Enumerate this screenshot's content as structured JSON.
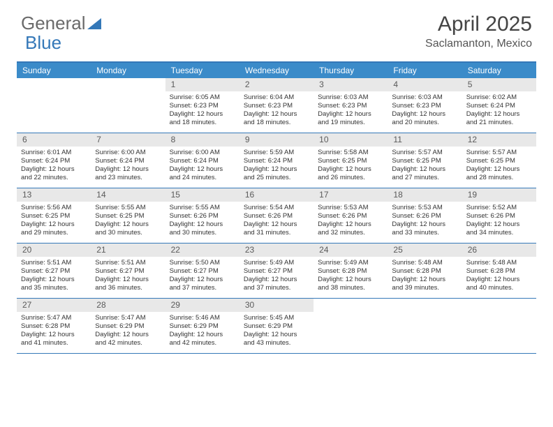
{
  "logo": {
    "text1": "General",
    "text2": "Blue"
  },
  "title": "April 2025",
  "location": "Saclamanton, Mexico",
  "colors": {
    "header_bg": "#3b8bc9",
    "border": "#3478b8",
    "daynum_bg": "#e8e8e8",
    "text": "#333333",
    "logo_gray": "#6a6a6a",
    "logo_blue": "#3478b8"
  },
  "day_headers": [
    "Sunday",
    "Monday",
    "Tuesday",
    "Wednesday",
    "Thursday",
    "Friday",
    "Saturday"
  ],
  "weeks": [
    [
      {
        "n": "",
        "sr": "",
        "ss": "",
        "dl": ""
      },
      {
        "n": "",
        "sr": "",
        "ss": "",
        "dl": ""
      },
      {
        "n": "1",
        "sr": "Sunrise: 6:05 AM",
        "ss": "Sunset: 6:23 PM",
        "dl": "Daylight: 12 hours and 18 minutes."
      },
      {
        "n": "2",
        "sr": "Sunrise: 6:04 AM",
        "ss": "Sunset: 6:23 PM",
        "dl": "Daylight: 12 hours and 18 minutes."
      },
      {
        "n": "3",
        "sr": "Sunrise: 6:03 AM",
        "ss": "Sunset: 6:23 PM",
        "dl": "Daylight: 12 hours and 19 minutes."
      },
      {
        "n": "4",
        "sr": "Sunrise: 6:03 AM",
        "ss": "Sunset: 6:23 PM",
        "dl": "Daylight: 12 hours and 20 minutes."
      },
      {
        "n": "5",
        "sr": "Sunrise: 6:02 AM",
        "ss": "Sunset: 6:24 PM",
        "dl": "Daylight: 12 hours and 21 minutes."
      }
    ],
    [
      {
        "n": "6",
        "sr": "Sunrise: 6:01 AM",
        "ss": "Sunset: 6:24 PM",
        "dl": "Daylight: 12 hours and 22 minutes."
      },
      {
        "n": "7",
        "sr": "Sunrise: 6:00 AM",
        "ss": "Sunset: 6:24 PM",
        "dl": "Daylight: 12 hours and 23 minutes."
      },
      {
        "n": "8",
        "sr": "Sunrise: 6:00 AM",
        "ss": "Sunset: 6:24 PM",
        "dl": "Daylight: 12 hours and 24 minutes."
      },
      {
        "n": "9",
        "sr": "Sunrise: 5:59 AM",
        "ss": "Sunset: 6:24 PM",
        "dl": "Daylight: 12 hours and 25 minutes."
      },
      {
        "n": "10",
        "sr": "Sunrise: 5:58 AM",
        "ss": "Sunset: 6:25 PM",
        "dl": "Daylight: 12 hours and 26 minutes."
      },
      {
        "n": "11",
        "sr": "Sunrise: 5:57 AM",
        "ss": "Sunset: 6:25 PM",
        "dl": "Daylight: 12 hours and 27 minutes."
      },
      {
        "n": "12",
        "sr": "Sunrise: 5:57 AM",
        "ss": "Sunset: 6:25 PM",
        "dl": "Daylight: 12 hours and 28 minutes."
      }
    ],
    [
      {
        "n": "13",
        "sr": "Sunrise: 5:56 AM",
        "ss": "Sunset: 6:25 PM",
        "dl": "Daylight: 12 hours and 29 minutes."
      },
      {
        "n": "14",
        "sr": "Sunrise: 5:55 AM",
        "ss": "Sunset: 6:25 PM",
        "dl": "Daylight: 12 hours and 30 minutes."
      },
      {
        "n": "15",
        "sr": "Sunrise: 5:55 AM",
        "ss": "Sunset: 6:26 PM",
        "dl": "Daylight: 12 hours and 30 minutes."
      },
      {
        "n": "16",
        "sr": "Sunrise: 5:54 AM",
        "ss": "Sunset: 6:26 PM",
        "dl": "Daylight: 12 hours and 31 minutes."
      },
      {
        "n": "17",
        "sr": "Sunrise: 5:53 AM",
        "ss": "Sunset: 6:26 PM",
        "dl": "Daylight: 12 hours and 32 minutes."
      },
      {
        "n": "18",
        "sr": "Sunrise: 5:53 AM",
        "ss": "Sunset: 6:26 PM",
        "dl": "Daylight: 12 hours and 33 minutes."
      },
      {
        "n": "19",
        "sr": "Sunrise: 5:52 AM",
        "ss": "Sunset: 6:26 PM",
        "dl": "Daylight: 12 hours and 34 minutes."
      }
    ],
    [
      {
        "n": "20",
        "sr": "Sunrise: 5:51 AM",
        "ss": "Sunset: 6:27 PM",
        "dl": "Daylight: 12 hours and 35 minutes."
      },
      {
        "n": "21",
        "sr": "Sunrise: 5:51 AM",
        "ss": "Sunset: 6:27 PM",
        "dl": "Daylight: 12 hours and 36 minutes."
      },
      {
        "n": "22",
        "sr": "Sunrise: 5:50 AM",
        "ss": "Sunset: 6:27 PM",
        "dl": "Daylight: 12 hours and 37 minutes."
      },
      {
        "n": "23",
        "sr": "Sunrise: 5:49 AM",
        "ss": "Sunset: 6:27 PM",
        "dl": "Daylight: 12 hours and 37 minutes."
      },
      {
        "n": "24",
        "sr": "Sunrise: 5:49 AM",
        "ss": "Sunset: 6:28 PM",
        "dl": "Daylight: 12 hours and 38 minutes."
      },
      {
        "n": "25",
        "sr": "Sunrise: 5:48 AM",
        "ss": "Sunset: 6:28 PM",
        "dl": "Daylight: 12 hours and 39 minutes."
      },
      {
        "n": "26",
        "sr": "Sunrise: 5:48 AM",
        "ss": "Sunset: 6:28 PM",
        "dl": "Daylight: 12 hours and 40 minutes."
      }
    ],
    [
      {
        "n": "27",
        "sr": "Sunrise: 5:47 AM",
        "ss": "Sunset: 6:28 PM",
        "dl": "Daylight: 12 hours and 41 minutes."
      },
      {
        "n": "28",
        "sr": "Sunrise: 5:47 AM",
        "ss": "Sunset: 6:29 PM",
        "dl": "Daylight: 12 hours and 42 minutes."
      },
      {
        "n": "29",
        "sr": "Sunrise: 5:46 AM",
        "ss": "Sunset: 6:29 PM",
        "dl": "Daylight: 12 hours and 42 minutes."
      },
      {
        "n": "30",
        "sr": "Sunrise: 5:45 AM",
        "ss": "Sunset: 6:29 PM",
        "dl": "Daylight: 12 hours and 43 minutes."
      },
      {
        "n": "",
        "sr": "",
        "ss": "",
        "dl": ""
      },
      {
        "n": "",
        "sr": "",
        "ss": "",
        "dl": ""
      },
      {
        "n": "",
        "sr": "",
        "ss": "",
        "dl": ""
      }
    ]
  ]
}
